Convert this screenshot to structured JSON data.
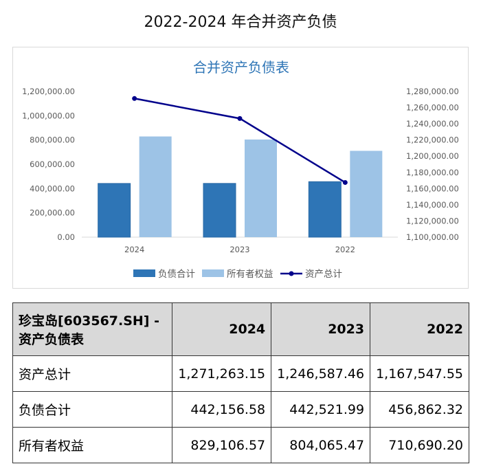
{
  "page_title": "2022-2024 年合并资产负债",
  "chart_data": {
    "type": "bar+line",
    "title": "合并资产负债表",
    "categories": [
      "2024",
      "2023",
      "2022"
    ],
    "series": [
      {
        "name": "负债合计",
        "type": "bar",
        "axis": "left",
        "color": "#2e75b6",
        "values": [
          442156.58,
          442521.99,
          456862.32
        ]
      },
      {
        "name": "所有者权益",
        "type": "bar",
        "axis": "left",
        "color": "#9dc3e6",
        "values": [
          829106.57,
          804065.47,
          710690.2
        ]
      },
      {
        "name": "资产总计",
        "type": "line",
        "axis": "right",
        "color": "#00008b",
        "values": [
          1271263.15,
          1246587.46,
          1167547.55
        ]
      }
    ],
    "ylim_left": [
      0,
      1200000
    ],
    "yticks_left": [
      "0.00",
      "200,000.00",
      "400,000.00",
      "600,000.00",
      "800,000.00",
      "1,000,000.00",
      "1,200,000.00"
    ],
    "ylim_right": [
      1100000,
      1280000
    ],
    "yticks_right": [
      "1,100,000.00",
      "1,120,000.00",
      "1,140,000.00",
      "1,160,000.00",
      "1,180,000.00",
      "1,200,000.00",
      "1,220,000.00",
      "1,240,000.00",
      "1,260,000.00",
      "1,280,000.00"
    ],
    "grid": false,
    "legend": "bottom"
  },
  "table": {
    "header": [
      "珍宝岛[603567.SH] - 资产负债表",
      "2024",
      "2023",
      "2022"
    ],
    "rows": [
      [
        "资产总计",
        "1,271,263.15",
        "1,246,587.46",
        "1,167,547.55"
      ],
      [
        "负债合计",
        "442,156.58",
        "442,521.99",
        "456,862.32"
      ],
      [
        "所有者权益",
        "829,106.57",
        "804,065.47",
        "710,690.20"
      ]
    ]
  }
}
